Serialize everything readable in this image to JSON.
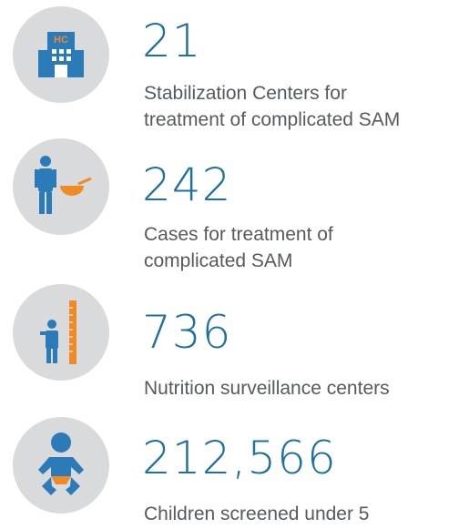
{
  "items": [
    {
      "number": "21",
      "lines": [
        "Stabilization Centers for",
        "treatment of complicated SAM"
      ]
    },
    {
      "number": "242",
      "lines": [
        "Cases for treatment of",
        "complicated SAM"
      ]
    },
    {
      "number": "736",
      "lines": [
        "Nutrition surveillance centers"
      ]
    },
    {
      "number": "212,566",
      "lines": [
        "Children screened under 5"
      ]
    }
  ]
}
